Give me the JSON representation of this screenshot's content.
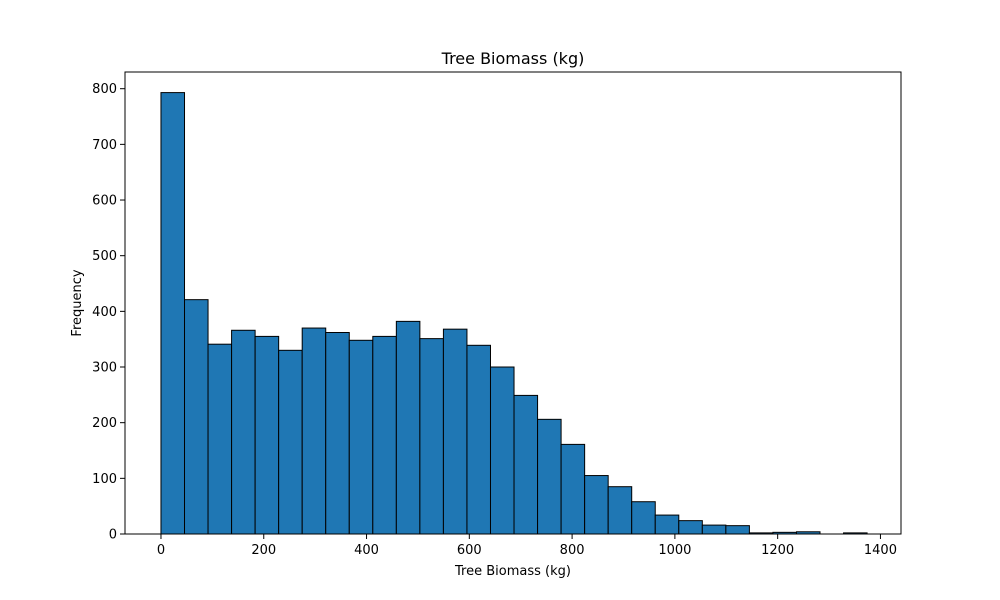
{
  "chart_data": {
    "type": "bar",
    "histogram": true,
    "title": "Tree Biomass (kg)",
    "xlabel": "Tree Biomass (kg)",
    "ylabel": "Frequency",
    "xlim": [
      -70,
      1440
    ],
    "ylim": [
      0,
      830
    ],
    "xticks": [
      0,
      200,
      400,
      600,
      800,
      1000,
      1200,
      1400
    ],
    "yticks": [
      0,
      100,
      200,
      300,
      400,
      500,
      600,
      700,
      800
    ],
    "bin_start": 0,
    "bin_width": 45.8,
    "values": [
      793,
      421,
      341,
      366,
      355,
      330,
      370,
      362,
      348,
      355,
      382,
      351,
      368,
      339,
      300,
      249,
      206,
      161,
      105,
      85,
      58,
      34,
      24,
      16,
      15,
      2,
      3,
      4,
      0,
      2
    ],
    "bar_color": "#1f77b4",
    "edge_color": "#000000",
    "grid": false,
    "legend": "none"
  }
}
